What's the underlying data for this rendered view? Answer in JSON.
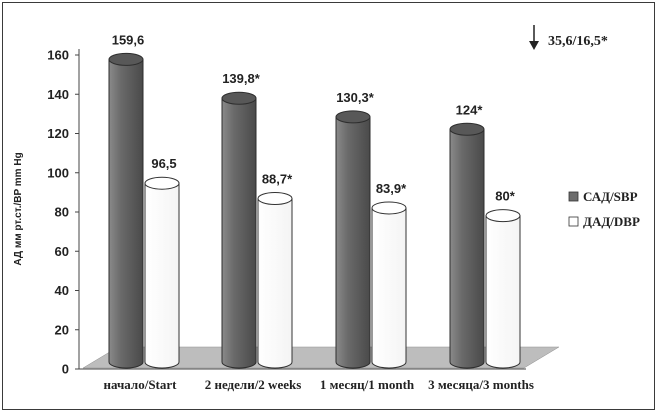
{
  "chart_data": {
    "type": "bar",
    "categories": [
      "начало/Start",
      "2 недели/2 weeks",
      "1 месяц/1 month",
      "3 месяца/3 months"
    ],
    "series": [
      {
        "name": "САД/SBP",
        "values": [
          159.6,
          139.8,
          130.3,
          124
        ],
        "labels": [
          "159,6",
          "139,8*",
          "130,3*",
          "124*"
        ],
        "color": "#6e6e6e"
      },
      {
        "name": "ДАД/DBP",
        "values": [
          96.5,
          88.7,
          83.9,
          80
        ],
        "labels": [
          "96,5",
          "88,7*",
          "83,9*",
          "80*"
        ],
        "color": "#ffffff"
      }
    ],
    "ylabel": "АД мм рт.ст./BP mm Hg",
    "ylim": [
      0,
      160
    ],
    "yticks": [
      "0",
      "20",
      "40",
      "60",
      "80",
      "100",
      "120",
      "140",
      "160"
    ],
    "grid": false,
    "legend": "right",
    "annotation": {
      "text": "35,6/16,5*",
      "icon": "down-arrow-icon",
      "position": "top-right"
    },
    "floor_color": "#bdbdbd"
  }
}
